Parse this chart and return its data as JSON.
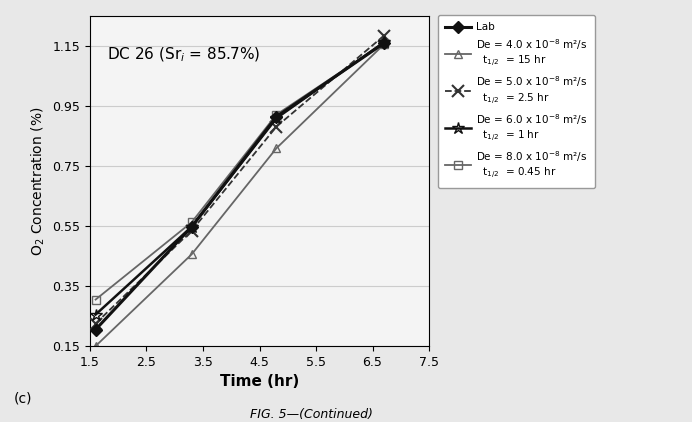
{
  "title_text": "DC 26 (Sr$_{i}$ = 85.7%)",
  "xlabel": "Time (hr)",
  "ylabel": "O$_2$ Concentration (%)",
  "subplot_label": "(c)",
  "caption": "FIG. 5—(Continued)",
  "xlim": [
    1.5,
    7.5
  ],
  "ylim": [
    0.15,
    1.25
  ],
  "xticks": [
    1.5,
    2.5,
    3.5,
    4.5,
    5.5,
    6.5,
    7.5
  ],
  "yticks": [
    0.15,
    0.35,
    0.55,
    0.75,
    0.95,
    1.15
  ],
  "lab": {
    "x": [
      1.6,
      3.3,
      4.8,
      6.7
    ],
    "y": [
      0.205,
      0.548,
      0.915,
      1.16
    ],
    "color": "#111111",
    "linewidth": 2.2,
    "marker": "D",
    "markersize": 6,
    "markerfacecolor": "#111111",
    "label": "Lab"
  },
  "de40": {
    "x": [
      1.6,
      3.3,
      4.8,
      6.7
    ],
    "y": [
      0.15,
      0.456,
      0.81,
      1.156
    ],
    "color": "#666666",
    "linewidth": 1.3,
    "linestyle": "-",
    "marker": "^",
    "markersize": 6,
    "label": "De = 4.0 x 10$^{-8}$ m²/s\n  t$_{1/2}$  = 15 hr"
  },
  "de50": {
    "x": [
      1.6,
      3.3,
      4.8,
      6.7
    ],
    "y": [
      0.225,
      0.535,
      0.882,
      1.185
    ],
    "color": "#333333",
    "linewidth": 1.3,
    "linestyle": "--",
    "marker": "x",
    "markersize": 8,
    "markeredgewidth": 1.5,
    "label": "De = 5.0 x 10$^{-8}$ m²/s\n  t$_{1/2}$  = 2.5 hr"
  },
  "de60": {
    "x": [
      1.6,
      3.3,
      4.8,
      6.7
    ],
    "y": [
      0.255,
      0.548,
      0.91,
      1.163
    ],
    "color": "#111111",
    "linewidth": 1.8,
    "linestyle": "-",
    "marker": "*",
    "markersize": 9,
    "label": "De = 6.0 x 10$^{-8}$ m²/s\n  t$_{1/2}$  = 1 hr"
  },
  "de80": {
    "x": [
      1.6,
      3.3,
      4.8,
      6.7
    ],
    "y": [
      0.305,
      0.563,
      0.922,
      1.16
    ],
    "color": "#666666",
    "linewidth": 1.3,
    "linestyle": "-",
    "marker": "s",
    "markersize": 6,
    "label": "De = 8.0 x 10$^{-8}$ m²/s\n  t$_{1/2}$  = 0.45 hr"
  },
  "background_color": "#e8e8e8",
  "plot_bg": "#f4f4f4",
  "grid_color": "#cccccc"
}
